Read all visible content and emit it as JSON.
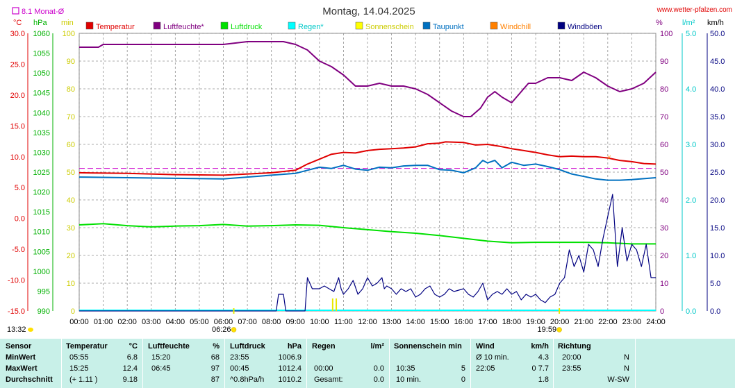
{
  "header": {
    "title": "Montag, 14.04.2025",
    "site": "www.wetter-pfalzen.com",
    "monthly_avg_label": "8.1 Monat-Ø"
  },
  "colors": {
    "temperature": "#e00000",
    "humidity": "#800080",
    "pressure": "#00e000",
    "rain": "#00ffff",
    "sunshine": "#ffff00",
    "dewpoint": "#0070c0",
    "windchill": "#ff8000",
    "gusts": "#000080",
    "monthly_avg": "#cc00cc",
    "summary_bg": "#c8f0e8"
  },
  "axes": {
    "unit_temp": "°C",
    "unit_pressure": "hPa",
    "unit_min": "min",
    "unit_percent": "%",
    "unit_rain": "l/m²",
    "unit_wind": "km/h",
    "temp_ticks": [
      "30.0",
      "25.0",
      "20.0",
      "15.0",
      "10.0",
      "5.0",
      "0.0",
      "-5.0",
      "-10.0",
      "-15.0"
    ],
    "pressure_ticks": [
      "1060",
      "1055",
      "1050",
      "1045",
      "1040",
      "1035",
      "1030",
      "1025",
      "1020",
      "1015",
      "1010",
      "1005",
      "1000",
      "995",
      "990"
    ],
    "min_ticks": [
      "100",
      "90",
      "80",
      "70",
      "60",
      "50",
      "40",
      "30",
      "20",
      "10",
      "0"
    ],
    "percent_ticks": [
      "100",
      "90",
      "80",
      "70",
      "60",
      "50",
      "40",
      "30",
      "20",
      "10",
      "0"
    ],
    "rain_ticks": [
      "5.0",
      "4.0",
      "3.0",
      "2.0",
      "1.0",
      "0.0"
    ],
    "wind_ticks": [
      "50.0",
      "45.0",
      "40.0",
      "35.0",
      "30.0",
      "25.0",
      "20.0",
      "15.0",
      "10.0",
      "5.0",
      "0.0"
    ],
    "time_ticks": [
      "00:00",
      "01:00",
      "02:00",
      "03:00",
      "04:00",
      "05:00",
      "06:00",
      "07:00",
      "08:00",
      "09:00",
      "10:00",
      "11:00",
      "12:00",
      "13:00",
      "14:00",
      "15:00",
      "16:00",
      "17:00",
      "18:00",
      "19:00",
      "20:00",
      "21:00",
      "22:00",
      "23:00",
      "24:00"
    ],
    "sunrise": "06:26",
    "sunset": "19:59",
    "sun_duration": "13:32"
  },
  "legend": [
    {
      "label": "Temperatur",
      "color": "#e00000"
    },
    {
      "label": "Luftfeuchte*",
      "color": "#800080"
    },
    {
      "label": "Luftdruck",
      "color": "#00e000"
    },
    {
      "label": "Regen*",
      "color": "#00ffff"
    },
    {
      "label": "Sonnenschein",
      "color": "#ffff00"
    },
    {
      "label": "Taupunkt",
      "color": "#0070c0"
    },
    {
      "label": "Windchill",
      "color": "#ff8000"
    },
    {
      "label": "Windböen",
      "color": "#000080"
    }
  ],
  "chart_data": {
    "type": "line",
    "title": "Montag, 14.04.2025",
    "x_unit": "hours",
    "xlim": [
      0,
      24
    ],
    "monthly_avg_temp": 8.1,
    "series": [
      {
        "name": "Temperatur",
        "unit": "°C",
        "axis": "temp",
        "points": [
          [
            0,
            7.4
          ],
          [
            2,
            7.3
          ],
          [
            4,
            7.1
          ],
          [
            6,
            7.0
          ],
          [
            8,
            7.4
          ],
          [
            9,
            7.8
          ],
          [
            9.5,
            8.8
          ],
          [
            10,
            9.6
          ],
          [
            10.5,
            10.4
          ],
          [
            11,
            10.7
          ],
          [
            11.5,
            10.6
          ],
          [
            12,
            11.0
          ],
          [
            12.5,
            11.2
          ],
          [
            13,
            11.3
          ],
          [
            13.5,
            11.4
          ],
          [
            14,
            11.6
          ],
          [
            14.5,
            12.1
          ],
          [
            15,
            12.2
          ],
          [
            15.25,
            12.4
          ],
          [
            16,
            12.3
          ],
          [
            16.5,
            11.9
          ],
          [
            17,
            12.0
          ],
          [
            17.5,
            11.7
          ],
          [
            18,
            11.3
          ],
          [
            18.5,
            11.0
          ],
          [
            19,
            10.7
          ],
          [
            19.5,
            10.3
          ],
          [
            20,
            10.0
          ],
          [
            20.5,
            10.1
          ],
          [
            21,
            10.0
          ],
          [
            21.5,
            10.0
          ],
          [
            22,
            9.8
          ],
          [
            22.5,
            9.4
          ],
          [
            23,
            9.2
          ],
          [
            23.5,
            8.9
          ],
          [
            24,
            8.8
          ]
        ]
      },
      {
        "name": "Luftfeuchte*",
        "unit": "%",
        "axis": "percent",
        "points": [
          [
            0,
            95
          ],
          [
            0.8,
            95
          ],
          [
            1,
            96
          ],
          [
            2,
            96
          ],
          [
            4,
            96
          ],
          [
            5,
            96
          ],
          [
            6,
            96
          ],
          [
            7,
            97
          ],
          [
            8,
            97
          ],
          [
            8.5,
            97
          ],
          [
            9,
            96
          ],
          [
            9.5,
            94
          ],
          [
            10,
            90
          ],
          [
            10.5,
            88
          ],
          [
            11,
            85
          ],
          [
            11.5,
            81
          ],
          [
            12,
            81
          ],
          [
            12.5,
            82
          ],
          [
            13,
            81
          ],
          [
            13.5,
            81
          ],
          [
            14,
            80
          ],
          [
            14.5,
            78
          ],
          [
            15,
            75
          ],
          [
            15.5,
            72
          ],
          [
            16,
            70
          ],
          [
            16.3,
            70
          ],
          [
            16.7,
            73
          ],
          [
            17,
            77
          ],
          [
            17.3,
            79
          ],
          [
            17.6,
            77
          ],
          [
            18,
            75
          ],
          [
            18.3,
            78
          ],
          [
            18.7,
            82
          ],
          [
            19,
            82
          ],
          [
            19.5,
            84
          ],
          [
            20,
            84
          ],
          [
            20.5,
            83
          ],
          [
            21,
            86
          ],
          [
            21.5,
            84
          ],
          [
            22,
            81
          ],
          [
            22.5,
            79
          ],
          [
            23,
            80
          ],
          [
            23.5,
            82
          ],
          [
            24,
            86
          ]
        ]
      },
      {
        "name": "Luftdruck",
        "unit": "hPa",
        "axis": "pressure",
        "points": [
          [
            0,
            1011.7
          ],
          [
            1,
            1012.0
          ],
          [
            2,
            1011.5
          ],
          [
            3,
            1011.2
          ],
          [
            4,
            1011.4
          ],
          [
            5,
            1011.5
          ],
          [
            6,
            1011.8
          ],
          [
            7,
            1011.4
          ],
          [
            8,
            1011.5
          ],
          [
            9,
            1011.7
          ],
          [
            10,
            1011.6
          ],
          [
            11,
            1011.0
          ],
          [
            12,
            1010.5
          ],
          [
            13,
            1010.0
          ],
          [
            14,
            1009.6
          ],
          [
            15,
            1009.0
          ],
          [
            16,
            1008.3
          ],
          [
            17,
            1007.6
          ],
          [
            18,
            1007.2
          ],
          [
            19,
            1007.3
          ],
          [
            20,
            1007.3
          ],
          [
            21,
            1007.3
          ],
          [
            22,
            1007.2
          ],
          [
            23,
            1006.9
          ],
          [
            24,
            1006.9
          ]
        ]
      },
      {
        "name": "Taupunkt",
        "unit": "°C",
        "axis": "temp",
        "points": [
          [
            0,
            6.7
          ],
          [
            2,
            6.6
          ],
          [
            4,
            6.5
          ],
          [
            6,
            6.4
          ],
          [
            8,
            7.0
          ],
          [
            9,
            7.3
          ],
          [
            9.5,
            7.8
          ],
          [
            10,
            8.3
          ],
          [
            10.5,
            8.1
          ],
          [
            11,
            8.6
          ],
          [
            11.5,
            8.0
          ],
          [
            12,
            7.8
          ],
          [
            12.5,
            8.3
          ],
          [
            13,
            8.2
          ],
          [
            13.5,
            8.5
          ],
          [
            14,
            8.6
          ],
          [
            14.5,
            8.6
          ],
          [
            15,
            7.9
          ],
          [
            15.5,
            7.8
          ],
          [
            16,
            7.4
          ],
          [
            16.5,
            8.2
          ],
          [
            16.8,
            9.4
          ],
          [
            17,
            9.0
          ],
          [
            17.3,
            9.4
          ],
          [
            17.6,
            8.2
          ],
          [
            18,
            9.1
          ],
          [
            18.5,
            8.6
          ],
          [
            19,
            8.8
          ],
          [
            19.5,
            8.4
          ],
          [
            20,
            7.9
          ],
          [
            20.5,
            7.2
          ],
          [
            21,
            6.8
          ],
          [
            21.5,
            6.4
          ],
          [
            22,
            6.2
          ],
          [
            22.5,
            6.2
          ],
          [
            23,
            6.3
          ],
          [
            24,
            6.6
          ]
        ]
      },
      {
        "name": "Windböen",
        "unit": "km/h",
        "axis": "wind",
        "points": [
          [
            0,
            0
          ],
          [
            8.2,
            0
          ],
          [
            8.3,
            3
          ],
          [
            8.5,
            3
          ],
          [
            8.6,
            0
          ],
          [
            9.4,
            0
          ],
          [
            9.5,
            6
          ],
          [
            9.7,
            4
          ],
          [
            10,
            4
          ],
          [
            10.2,
            4.5
          ],
          [
            10.4,
            4
          ],
          [
            10.6,
            3.5
          ],
          [
            10.8,
            6
          ],
          [
            10.9,
            4
          ],
          [
            11,
            3
          ],
          [
            11.2,
            4
          ],
          [
            11.4,
            5.5
          ],
          [
            11.6,
            3
          ],
          [
            11.8,
            4
          ],
          [
            12,
            6
          ],
          [
            12.2,
            4.5
          ],
          [
            12.4,
            5
          ],
          [
            12.5,
            5.5
          ],
          [
            12.6,
            6
          ],
          [
            12.7,
            4
          ],
          [
            12.8,
            4.5
          ],
          [
            13,
            4
          ],
          [
            13.2,
            3
          ],
          [
            13.4,
            4
          ],
          [
            13.6,
            3.5
          ],
          [
            13.8,
            4
          ],
          [
            14,
            2.5
          ],
          [
            14.2,
            3
          ],
          [
            14.4,
            4
          ],
          [
            14.6,
            4.5
          ],
          [
            14.8,
            3
          ],
          [
            15,
            2.5
          ],
          [
            15.2,
            3
          ],
          [
            15.4,
            4
          ],
          [
            15.6,
            3.5
          ],
          [
            16,
            4
          ],
          [
            16.2,
            3
          ],
          [
            16.4,
            2.5
          ],
          [
            16.6,
            3.5
          ],
          [
            16.8,
            5
          ],
          [
            17,
            2
          ],
          [
            17.2,
            3
          ],
          [
            17.4,
            3.5
          ],
          [
            17.6,
            3
          ],
          [
            17.8,
            4
          ],
          [
            18,
            3
          ],
          [
            18.2,
            3.5
          ],
          [
            18.4,
            2
          ],
          [
            18.6,
            3
          ],
          [
            18.8,
            2.5
          ],
          [
            19,
            3
          ],
          [
            19.2,
            2
          ],
          [
            19.4,
            1.5
          ],
          [
            19.6,
            2.5
          ],
          [
            19.8,
            3
          ],
          [
            20,
            5
          ],
          [
            20.2,
            6
          ],
          [
            20.4,
            11
          ],
          [
            20.6,
            8
          ],
          [
            20.8,
            10
          ],
          [
            21,
            7
          ],
          [
            21.2,
            12
          ],
          [
            21.4,
            11
          ],
          [
            21.6,
            8
          ],
          [
            21.8,
            13
          ],
          [
            22,
            17
          ],
          [
            22.2,
            21
          ],
          [
            22.4,
            8
          ],
          [
            22.6,
            15
          ],
          [
            22.8,
            9
          ],
          [
            23,
            12
          ],
          [
            23.2,
            11
          ],
          [
            23.4,
            8
          ],
          [
            23.6,
            12
          ],
          [
            23.8,
            6
          ],
          [
            24,
            6
          ]
        ]
      }
    ],
    "rain_total": 0.0,
    "sunshine_total_min": 5
  },
  "summary": {
    "headers": {
      "sensor": "Sensor",
      "temp": "Temperatur",
      "temp_unit": "°C",
      "hum": "Luftfeuchte",
      "hum_unit": "%",
      "press": "Luftdruck",
      "press_unit": "hPa",
      "rain": "Regen",
      "rain_unit": "l/m²",
      "sun": "Sonnenschein min",
      "wind": "Wind",
      "wind_unit": "km/h",
      "dir": "Richtung"
    },
    "rows": [
      {
        "label": "MinWert",
        "t_time": "05:55",
        "t_val": "6.8",
        "h_time": "15:20",
        "h_val": "68",
        "p_time": "23:55",
        "p_val": "1006.9",
        "r_time": "",
        "r_val": "",
        "s_time": "",
        "s_val": "",
        "w_time": "Ø 10 min.",
        "w_val": "4.3",
        "d_time": "20:00",
        "d_val": "N"
      },
      {
        "label": "MaxWert",
        "t_time": "15:25",
        "t_val": "12.4",
        "h_time": "06:45",
        "h_val": "97",
        "p_time": "00:45",
        "p_val": "1012.4",
        "r_time": "00:00",
        "r_val": "0.0",
        "s_time": "10:35",
        "s_val": "5",
        "w_time": "22:05",
        "w_val": "0 7.7",
        "d_time": "23:55",
        "d_val": "N"
      },
      {
        "label": "Durchschnitt",
        "t_time": "(+ 1.11 )",
        "t_val": "9.18",
        "h_time": "",
        "h_val": "87",
        "p_time": "^0.8hPa/h",
        "p_val": "1010.2",
        "r_time": "Gesamt:",
        "r_val": "0.0",
        "s_time": "10 min.",
        "s_val": "0",
        "w_time": "",
        "w_val": "1.8",
        "d_time": "",
        "d_val": "W-SW"
      }
    ]
  }
}
